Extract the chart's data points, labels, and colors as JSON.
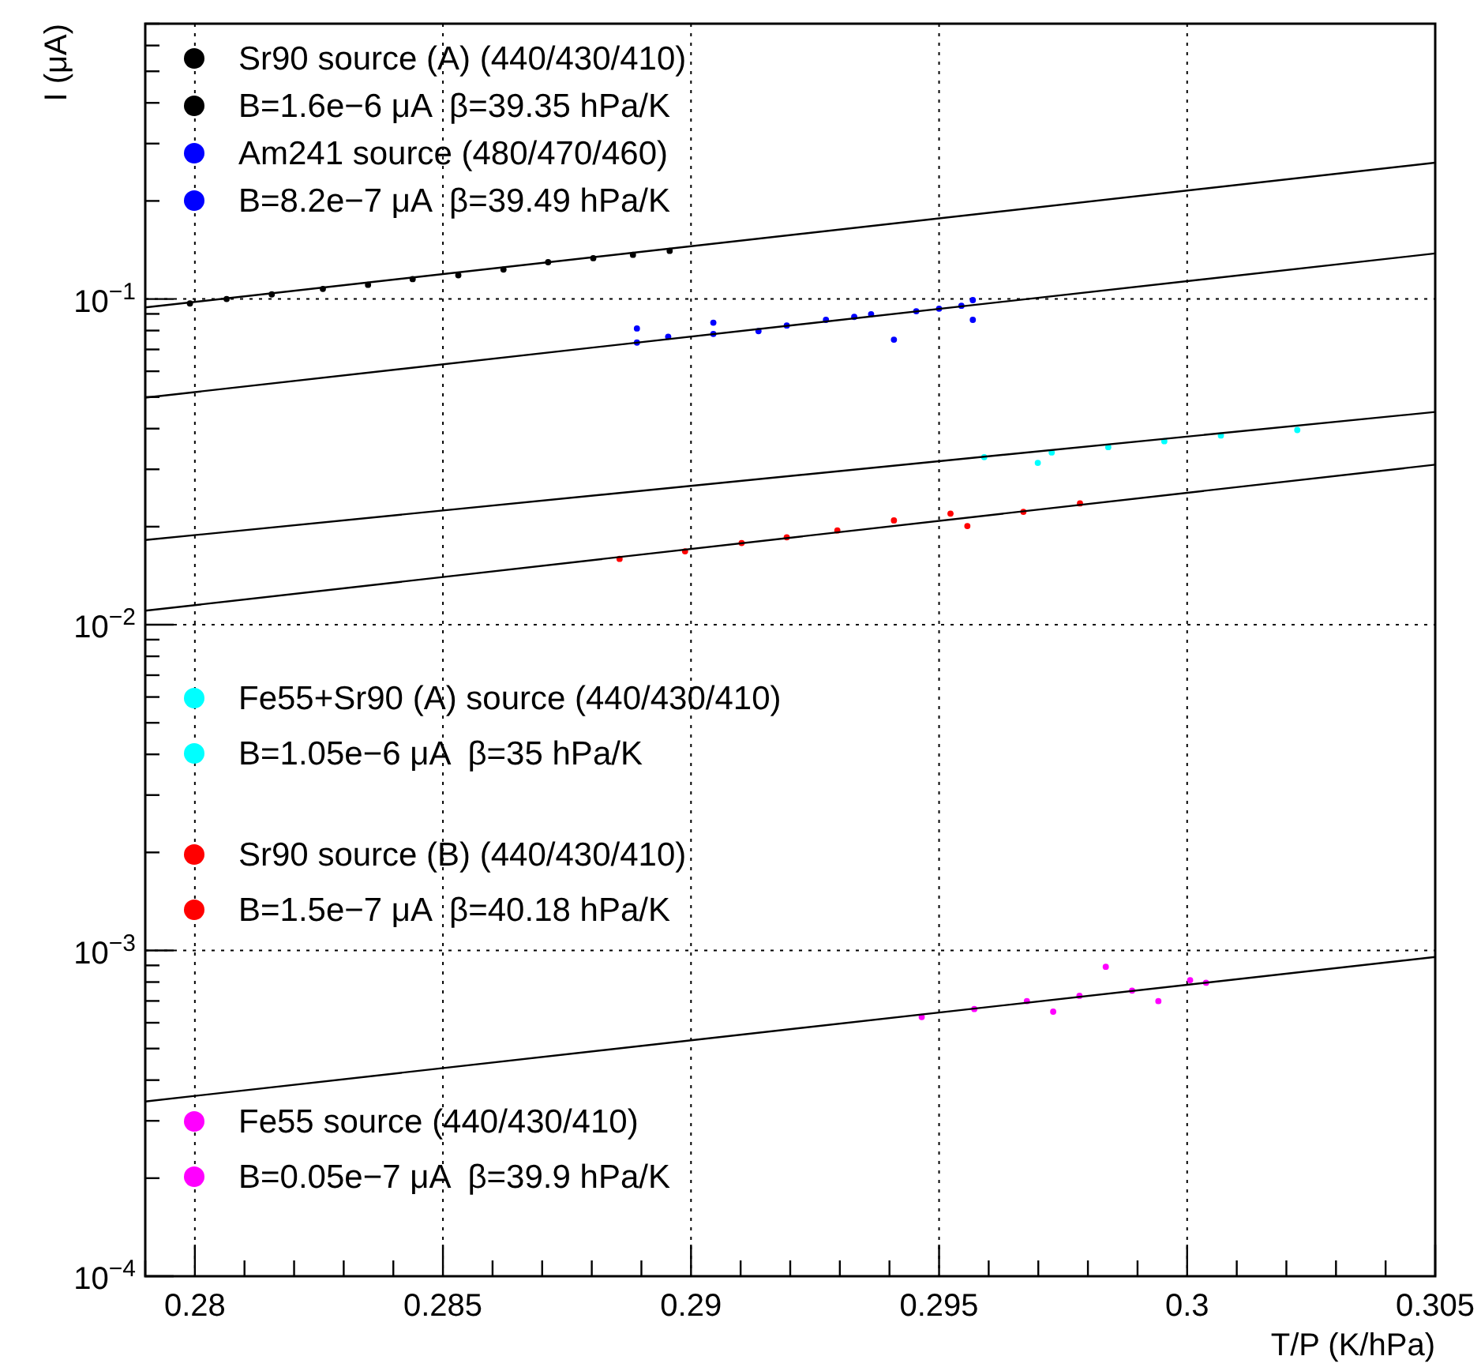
{
  "chart_data": {
    "type": "scatter",
    "xlabel": "T/P (K/hPa)",
    "ylabel": "I (μA)",
    "log": "y",
    "grid": true,
    "legend": "left",
    "marker": "circle",
    "line_style": "solid",
    "xlim": [
      0.279,
      0.305
    ],
    "ylim": [
      0.0001,
      0.7
    ],
    "xticks": [
      {
        "value": 0.279,
        "label": null
      },
      0.28,
      {
        "value": 0.281,
        "label": null
      },
      {
        "value": 0.282,
        "label": null
      },
      {
        "value": 0.283,
        "label": null
      },
      {
        "value": 0.284,
        "label": null
      },
      0.285,
      {
        "value": 0.286,
        "label": null
      },
      {
        "value": 0.287,
        "label": null
      },
      {
        "value": 0.288,
        "label": null
      },
      {
        "value": 0.289,
        "label": null
      },
      0.29,
      {
        "value": 0.291,
        "label": null
      },
      {
        "value": 0.292,
        "label": null
      },
      {
        "value": 0.293,
        "label": null
      },
      {
        "value": 0.294,
        "label": null
      },
      0.295,
      {
        "value": 0.296,
        "label": null
      },
      {
        "value": 0.297,
        "label": null
      },
      {
        "value": 0.298,
        "label": null
      },
      {
        "value": 0.299,
        "label": null
      },
      0.3,
      {
        "value": 0.301,
        "label": null
      },
      {
        "value": 0.302,
        "label": null
      },
      {
        "value": 0.303,
        "label": null
      },
      {
        "value": 0.304,
        "label": null
      },
      0.305
    ],
    "yticks": [
      {
        "value": 0.0001,
        "label": "10$^{−4}$"
      },
      {
        "value": 0.0002,
        "label": null
      },
      {
        "value": 0.0003,
        "label": null
      },
      {
        "value": 0.0004,
        "label": null
      },
      {
        "value": 0.0005,
        "label": null
      },
      {
        "value": 0.0006,
        "label": null
      },
      {
        "value": 0.0007,
        "label": null
      },
      {
        "value": 0.0008,
        "label": null
      },
      {
        "value": 0.0009,
        "label": null
      },
      {
        "value": 0.001,
        "label": "10$^{−3}$"
      },
      {
        "value": 0.002,
        "label": null
      },
      {
        "value": 0.003,
        "label": null
      },
      {
        "value": 0.004,
        "label": null
      },
      {
        "value": 0.005,
        "label": null
      },
      {
        "value": 0.006,
        "label": null
      },
      {
        "value": 0.007,
        "label": null
      },
      {
        "value": 0.008,
        "label": null
      },
      {
        "value": 0.009,
        "label": null
      },
      {
        "value": 0.01,
        "label": "10$^{−2}$"
      },
      {
        "value": 0.02,
        "label": null
      },
      {
        "value": 0.03,
        "label": null
      },
      {
        "value": 0.04,
        "label": null
      },
      {
        "value": 0.05,
        "label": null
      },
      {
        "value": 0.06,
        "label": null
      },
      {
        "value": 0.07,
        "label": null
      },
      {
        "value": 0.08,
        "label": null
      },
      {
        "value": 0.09,
        "label": null
      },
      {
        "value": 0.1,
        "label": "10$^{−1}$"
      },
      {
        "value": 0.2,
        "label": null
      },
      {
        "value": 0.3,
        "label": null
      },
      {
        "value": 0.4,
        "label": null
      },
      {
        "value": 0.5,
        "label": null
      },
      {
        "value": 0.6,
        "label": null
      },
      {
        "value": 0.7,
        "label": null
      }
    ],
    "series": [
      {
        "name": "Sr90 source (A) (440/430/410)\nB=1.6e−6 μA  β=39.35 hPa/K",
        "color": "#000000",
        "x": [
          0.2799,
          0.28064,
          0.28155,
          0.28258,
          0.28349,
          0.28439,
          0.28531,
          0.28622,
          0.28712,
          0.28803,
          0.28883,
          0.28957
        ],
        "values": [
          0.0969,
          0.1,
          0.1033,
          0.1074,
          0.1105,
          0.1151,
          0.1183,
          0.1231,
          0.1297,
          0.1334,
          0.1366,
          0.1405
        ]
      },
      {
        "name": "Am241 source (480/470/460)\nB=8.2e−7 μA  β=39.49 hPa/K",
        "color": "#0000ff",
        "x": [
          0.28891,
          0.28891,
          0.28954,
          0.29045,
          0.29045,
          0.29136,
          0.29193,
          0.29272,
          0.29329,
          0.29363,
          0.29409,
          0.29454,
          0.295,
          0.29545,
          0.29568,
          0.29568
        ],
        "values": [
          0.0735,
          0.0812,
          0.0766,
          0.0781,
          0.0846,
          0.0797,
          0.0829,
          0.0863,
          0.0881,
          0.0898,
          0.075,
          0.0917,
          0.0934,
          0.0953,
          0.0992,
          0.0863
        ]
      },
      {
        "name": "Fe55+Sr90 (A) source (440/430/410)\nB=1.05e−6 μA  β=35 hPa/K",
        "color": "#00ffff",
        "x": [
          0.29591,
          0.29699,
          0.29727,
          0.29841,
          0.29954,
          0.30068,
          0.30222
        ],
        "values": [
          0.0327,
          0.0314,
          0.0338,
          0.0351,
          0.0366,
          0.0381,
          0.0396
        ]
      },
      {
        "name": "Sr90 source (B) (440/430/410)\nB=1.5e−7 μA  β=40.18 hPa/K",
        "color": "#ff0000",
        "x": [
          0.28856,
          0.28988,
          0.29102,
          0.29193,
          0.29295,
          0.29409,
          0.29523,
          0.29557,
          0.2967,
          0.29784
        ],
        "values": [
          0.01593,
          0.0168,
          0.01782,
          0.01855,
          0.01947,
          0.02091,
          0.02194,
          0.02009,
          0.02221,
          0.02357
        ]
      },
      {
        "name": "Fe55 source (440/430/410)\nB=0.05e−7 μA  β=39.9 hPa/K",
        "color": "#ff00ff",
        "x": [
          0.29465,
          0.29571,
          0.29677,
          0.2973,
          0.29783,
          0.29836,
          0.29889,
          0.29942,
          0.30006,
          0.30038
        ],
        "values": [
          0.000625,
          0.000661,
          0.000699,
          0.000649,
          0.000726,
          0.000891,
          0.000753,
          0.000699,
          0.000811,
          0.000796
        ]
      },
      {
        "type": "line",
        "marker": "none",
        "color": "#000000",
        "x": [
          0.279,
          0.305
        ],
        "values": [
          0.0942,
          0.262
        ]
      },
      {
        "type": "line",
        "marker": "none",
        "color": "#000000",
        "x": [
          0.279,
          0.305
        ],
        "values": [
          0.0498,
          0.138
        ]
      },
      {
        "type": "line",
        "marker": "none",
        "color": "#000000",
        "x": [
          0.279,
          0.305
        ],
        "values": [
          0.0182,
          0.045
        ]
      },
      {
        "type": "line",
        "marker": "none",
        "color": "#000000",
        "x": [
          0.279,
          0.305
        ],
        "values": [
          0.01104,
          0.031
        ]
      },
      {
        "type": "line",
        "marker": "none",
        "color": "#000000",
        "x": [
          0.279,
          0.305
        ],
        "values": [
          0.000344,
          0.000955
        ]
      }
    ]
  }
}
